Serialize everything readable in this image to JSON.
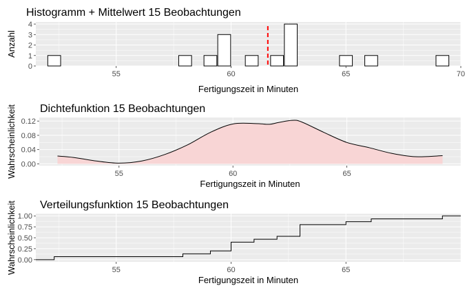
{
  "chart_data": [
    {
      "type": "bar",
      "subtype": "histogram",
      "title": "Histogramm + Mittelwert 15 Beobachtungen",
      "xlabel": "Fertigungszeit in Minuten",
      "ylabel": "Anzahl",
      "xlim": [
        51.5,
        70
      ],
      "ylim": [
        0,
        4.2
      ],
      "xticks": [
        "55",
        "60",
        "65",
        "70"
      ],
      "yticks": [
        "0",
        "1",
        "2",
        "3",
        "4"
      ],
      "bin_width": 0.56,
      "bins": [
        {
          "x": 52.3,
          "count": 1
        },
        {
          "x": 58.0,
          "count": 1
        },
        {
          "x": 59.1,
          "count": 1
        },
        {
          "x": 59.7,
          "count": 3
        },
        {
          "x": 60.9,
          "count": 1
        },
        {
          "x": 62.0,
          "count": 1
        },
        {
          "x": 62.6,
          "count": 4
        },
        {
          "x": 65.0,
          "count": 1
        },
        {
          "x": 66.1,
          "count": 1
        },
        {
          "x": 69.2,
          "count": 1
        }
      ],
      "mean_line": {
        "x": 61.6,
        "color": "#ff0000",
        "style": "dashed"
      },
      "grid": true
    },
    {
      "type": "area",
      "title": "Dichtefunktion 15 Beobachtungen",
      "xlabel": "Fertigungszeit in Minuten",
      "ylabel": "Wahrscheinlichkeit",
      "xlim": [
        51.5,
        70
      ],
      "ylim": [
        -0.005,
        0.13
      ],
      "xticks": [
        "55",
        "60",
        "65"
      ],
      "yticks": [
        "0.00",
        "0.04",
        "0.08",
        "0.12"
      ],
      "fill_color": "#f8d5d5",
      "x": [
        52.3,
        53,
        54,
        55,
        56,
        57,
        58,
        59,
        60,
        61,
        61.6,
        62,
        62.6,
        63,
        64,
        65,
        66,
        67,
        68,
        69.2
      ],
      "y": [
        0.022,
        0.018,
        0.008,
        0.002,
        0.008,
        0.026,
        0.053,
        0.088,
        0.112,
        0.113,
        0.111,
        0.116,
        0.122,
        0.118,
        0.088,
        0.06,
        0.045,
        0.029,
        0.02,
        0.023
      ],
      "grid": true
    },
    {
      "type": "line",
      "subtype": "step",
      "title": "Verteilungsfunktion 15 Beobachtungen",
      "xlabel": "Fertigungszeit in Minuten",
      "ylabel": "Wahrscheinlichkeit",
      "xlim": [
        51.5,
        70
      ],
      "ylim": [
        -0.05,
        1.05
      ],
      "xticks": [
        "55",
        "60",
        "65"
      ],
      "yticks": [
        "0.00",
        "0.25",
        "0.50",
        "0.75",
        "1.00"
      ],
      "x": [
        52.3,
        57.9,
        59.1,
        60.0,
        61.0,
        62.0,
        63.0,
        65.0,
        66.1,
        69.2
      ],
      "y": [
        0.067,
        0.133,
        0.2,
        0.4,
        0.467,
        0.533,
        0.8,
        0.867,
        0.933,
        1.0
      ],
      "grid": true
    }
  ]
}
